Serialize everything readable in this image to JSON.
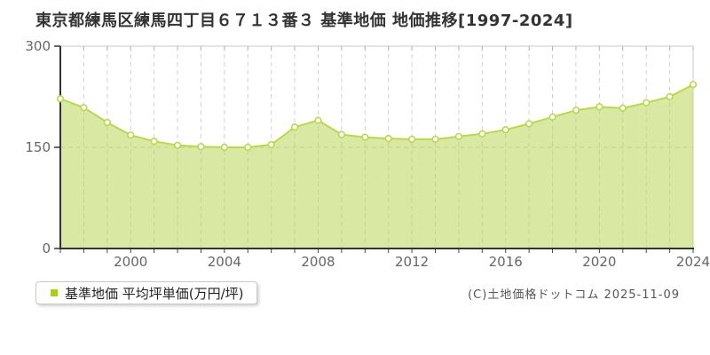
{
  "page": {
    "title": "東京都練馬区練馬四丁目６７１３番３ 基準地価 地価推移[1997-2024]",
    "footer": "(C)土地価格ドットコム 2025-11-09"
  },
  "legend": {
    "label": "基準地価 平均坪単価(万円/坪)"
  },
  "chart_data": {
    "type": "area",
    "title": "東京都練馬区練馬四丁目６７１３番３ 基準地価 地価推移[1997-2024]",
    "series_name": "基準地価 平均坪単価(万円/坪)",
    "ylabel": "平均坪単価(万円/坪)",
    "xlabel": "",
    "x": [
      1997,
      1998,
      1999,
      2000,
      2001,
      2002,
      2003,
      2004,
      2005,
      2006,
      2007,
      2008,
      2009,
      2010,
      2011,
      2012,
      2013,
      2014,
      2015,
      2016,
      2017,
      2018,
      2019,
      2020,
      2021,
      2022,
      2023,
      2024
    ],
    "values": [
      222,
      209,
      187,
      168,
      159,
      153,
      151,
      150,
      150,
      154,
      180,
      190,
      169,
      165,
      163,
      162,
      162,
      166,
      170,
      176,
      185,
      195,
      205,
      210,
      208,
      216,
      225,
      243
    ],
    "ylim": [
      0,
      300
    ],
    "yticks": [
      0,
      150,
      300
    ],
    "xticks": [
      2000,
      2004,
      2008,
      2012,
      2016,
      2020,
      2024
    ],
    "grid": true,
    "legend_position": "bottom-left",
    "colors": {
      "line": "#b9d74f",
      "fill": "#b4d348",
      "fill_opacity": 0.5,
      "marker_fill": "#ffffff",
      "legend_swatch": "#a9d011",
      "grid_line": "#d2d2d2",
      "frame": "#c8c8c8",
      "axis": "#333333",
      "tick_label": "#666666"
    }
  }
}
